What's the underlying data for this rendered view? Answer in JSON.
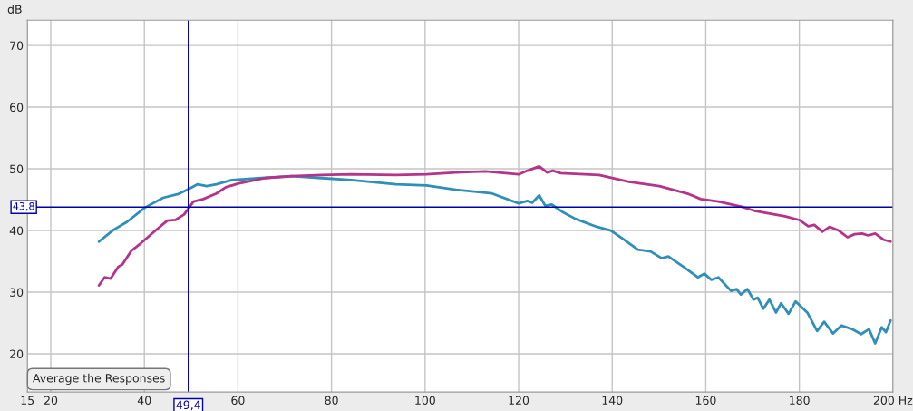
{
  "chart_data": {
    "type": "line",
    "ylabel": "dB",
    "xlim": [
      15,
      200
    ],
    "ylim": [
      13.8,
      74.1
    ],
    "xticks": [
      15,
      20,
      40,
      60,
      80,
      100,
      120,
      140,
      160,
      180,
      {
        "value": 200,
        "label": "200 Hz"
      }
    ],
    "yticks": [
      20,
      30,
      40,
      50,
      60,
      70
    ],
    "grid": true,
    "line_style": "solid",
    "ref_lines": [
      {
        "axis": "x",
        "value": 49.4,
        "label": "49,4",
        "color": "#0000aa"
      },
      {
        "axis": "y",
        "value": 43.8,
        "label": "43,8",
        "color": "#0000aa"
      }
    ],
    "annotations": [
      "Average the Responses"
    ],
    "series": [
      {
        "color": "#2f8fb8",
        "x": [
          30.3,
          33.4,
          36.3,
          40.1,
          44,
          47.2,
          49.7,
          51.4,
          53.3,
          55.4,
          58.7,
          65,
          71.5,
          77.9,
          84.2,
          93.8,
          100.3,
          106.6,
          114.3,
          120,
          121.9,
          122.9,
          124.4,
          125.7,
          127.1,
          129.6,
          132.1,
          136.7,
          139.7,
          142.4,
          145.5,
          148.2,
          150.6,
          152,
          155.8,
          158.3,
          159.7,
          161.2,
          162.7,
          165.4,
          166.6,
          167.5,
          168.9,
          170.2,
          171.1,
          172.3,
          173.6,
          175,
          176.1,
          177.7,
          179.2,
          181.7,
          183.8,
          185.3,
          187.2,
          189,
          191.3,
          193.2,
          194.9,
          196.2,
          197.6,
          198.5,
          199.5
        ],
        "values": [
          38.2,
          40.1,
          41.4,
          43.7,
          45.3,
          45.9,
          46.8,
          47.5,
          47.2,
          47.5,
          48.2,
          48.5,
          48.8,
          48.5,
          48.2,
          47.5,
          47.3,
          46.6,
          46,
          44.4,
          44.8,
          44.5,
          45.7,
          44,
          44.2,
          42.9,
          41.9,
          40.6,
          40,
          38.6,
          36.9,
          36.6,
          35.5,
          35.8,
          33.8,
          32.4,
          33,
          32,
          32.4,
          30.2,
          30.5,
          29.6,
          30.5,
          28.8,
          29.1,
          27.3,
          28.8,
          26.7,
          28.2,
          26.5,
          28.5,
          26.7,
          23.7,
          25.2,
          23.3,
          24.6,
          24,
          23.2,
          24,
          21.7,
          24.3,
          23.5,
          25.4
        ]
      },
      {
        "color": "#b5338a",
        "x": [
          30.3,
          31.5,
          32.8,
          34.4,
          35.3,
          37.2,
          39.2,
          42.4,
          44.9,
          46.6,
          48.5,
          50.5,
          52.6,
          55.4,
          57.4,
          60,
          61.9,
          65.8,
          71.5,
          77.9,
          84.2,
          93.8,
          100.3,
          106.6,
          112.9,
          120,
          121.9,
          124.4,
          126.1,
          127.3,
          129,
          137.2,
          143.6,
          150.1,
          156.4,
          158.9,
          162.7,
          167.9,
          170.4,
          176.9,
          180,
          181.9,
          183.2,
          184.9,
          186.5,
          188.4,
          190.3,
          191.8,
          193.4,
          194.7,
          196.2,
          198,
          199.5
        ],
        "values": [
          31.1,
          32.4,
          32.2,
          34.1,
          34.5,
          36.7,
          37.9,
          40,
          41.6,
          41.7,
          42.6,
          44.7,
          45.1,
          46,
          47,
          47.6,
          47.9,
          48.5,
          48.8,
          49,
          49.1,
          49,
          49.1,
          49.4,
          49.6,
          49.1,
          49.7,
          50.4,
          49.4,
          49.7,
          49.3,
          49,
          47.9,
          47.2,
          45.9,
          45.1,
          44.7,
          43.8,
          43.2,
          42.3,
          41.7,
          40.7,
          40.9,
          39.8,
          40.6,
          40,
          38.9,
          39.4,
          39.5,
          39.2,
          39.5,
          38.5,
          38.2
        ]
      }
    ]
  }
}
